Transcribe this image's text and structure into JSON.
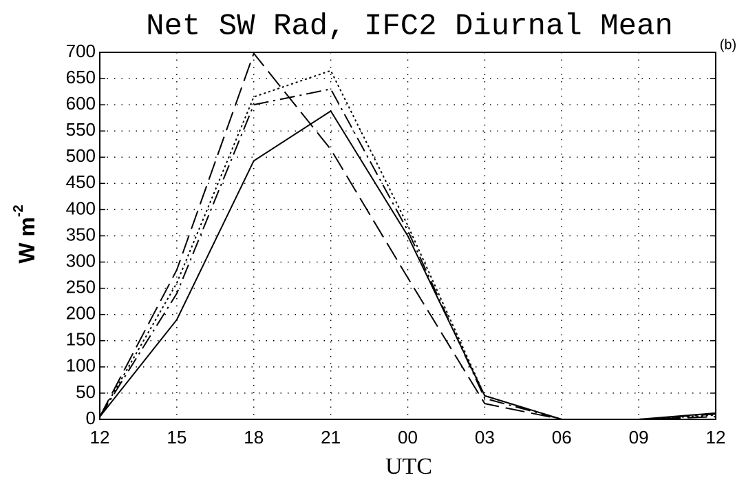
{
  "chart_data": {
    "type": "line",
    "title": "Net SW Rad, IFC2 Diurnal Mean",
    "annotation": "(b)",
    "xlabel": "UTC",
    "ylabel": "W m",
    "ylabel_superscript": "-2",
    "categories": [
      "12",
      "15",
      "18",
      "21",
      "00",
      "03",
      "06",
      "09",
      "12"
    ],
    "series": [
      {
        "color": "#000000",
        "style": "solid",
        "values": [
          5,
          190,
          493,
          588,
          350,
          45,
          0,
          0,
          12
        ]
      },
      {
        "color": "#000000",
        "style": "dotted",
        "values": [
          5,
          260,
          615,
          665,
          370,
          45,
          0,
          0,
          8
        ]
      },
      {
        "color": "#000000",
        "style": "dashed",
        "values": [
          5,
          285,
          698,
          515,
          270,
          30,
          0,
          0,
          5
        ]
      },
      {
        "color": "#000000",
        "style": "dashdot",
        "values": [
          5,
          240,
          600,
          630,
          360,
          40,
          0,
          0,
          10
        ]
      }
    ],
    "ylim": [
      0,
      700
    ],
    "yticks": [
      0,
      50,
      100,
      150,
      200,
      250,
      300,
      350,
      400,
      450,
      500,
      550,
      600,
      650,
      700
    ],
    "grid": true
  }
}
